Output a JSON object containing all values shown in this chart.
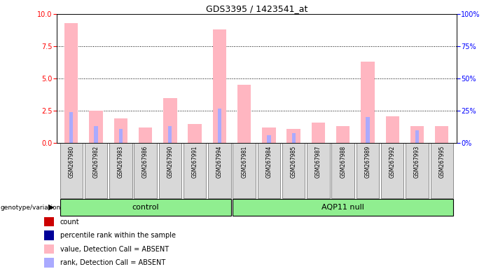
{
  "title": "GDS3395 / 1423541_at",
  "samples": [
    "GSM267980",
    "GSM267982",
    "GSM267983",
    "GSM267986",
    "GSM267990",
    "GSM267991",
    "GSM267994",
    "GSM267981",
    "GSM267984",
    "GSM267985",
    "GSM267987",
    "GSM267988",
    "GSM267989",
    "GSM267992",
    "GSM267993",
    "GSM267995"
  ],
  "groups": [
    "control",
    "control",
    "control",
    "control",
    "control",
    "control",
    "control",
    "AQP11 null",
    "AQP11 null",
    "AQP11 null",
    "AQP11 null",
    "AQP11 null",
    "AQP11 null",
    "AQP11 null",
    "AQP11 null",
    "AQP11 null"
  ],
  "value_absent": [
    9.3,
    2.5,
    1.9,
    1.2,
    3.5,
    1.5,
    8.8,
    4.5,
    1.2,
    1.1,
    1.6,
    1.3,
    6.3,
    2.1,
    1.3,
    1.3
  ],
  "rank_absent": [
    2.4,
    1.3,
    1.1,
    0.0,
    1.3,
    0.0,
    2.7,
    0.0,
    0.6,
    0.8,
    0.0,
    0.0,
    2.0,
    0.0,
    1.0,
    0.0
  ],
  "count": [
    0.0,
    0.0,
    0.0,
    0.0,
    0.0,
    0.0,
    0.0,
    0.0,
    0.0,
    0.0,
    0.0,
    0.0,
    0.0,
    0.0,
    0.0,
    0.0
  ],
  "pct_rank": [
    0.0,
    0.0,
    0.0,
    0.0,
    0.0,
    0.0,
    0.0,
    0.0,
    0.0,
    0.0,
    0.0,
    0.0,
    0.0,
    0.0,
    0.0,
    0.0
  ],
  "ylim_left": [
    0,
    10
  ],
  "ylim_right": [
    0,
    100
  ],
  "yticks_left": [
    0,
    2.5,
    5,
    7.5,
    10
  ],
  "yticks_right": [
    0,
    25,
    50,
    75,
    100
  ],
  "color_count": "#cc0000",
  "color_pct_rank": "#000099",
  "color_value_absent": "#FFB6C1",
  "color_rank_absent": "#aaaaff",
  "bg_color": "#d8d8d8",
  "light_green": "#90EE90",
  "legend_items": [
    "count",
    "percentile rank within the sample",
    "value, Detection Call = ABSENT",
    "rank, Detection Call = ABSENT"
  ],
  "legend_colors": [
    "#cc0000",
    "#000099",
    "#FFB6C1",
    "#aaaaff"
  ]
}
